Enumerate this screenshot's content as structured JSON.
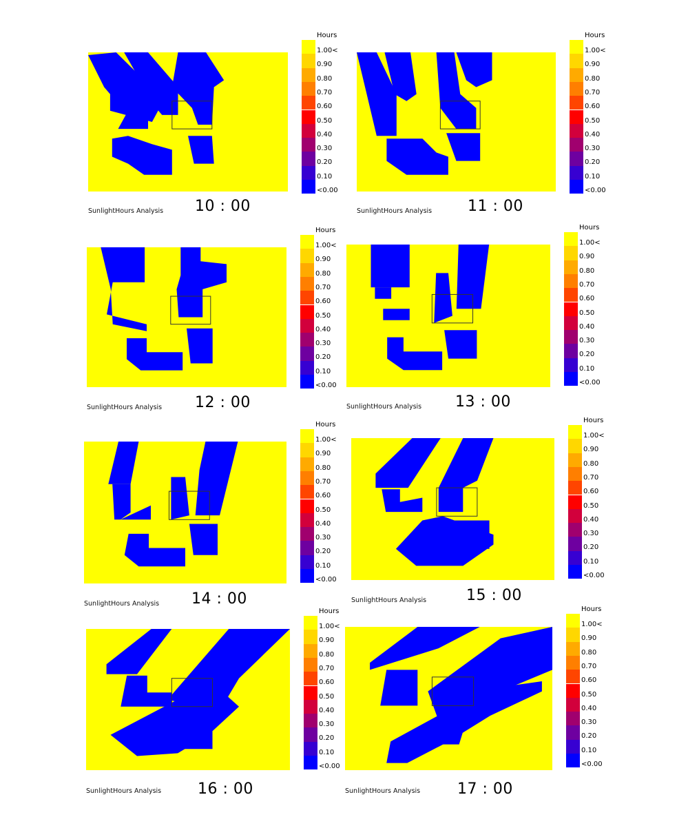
{
  "colors": {
    "background": "#ffff00",
    "shadow": "#0000ff",
    "outline": "#333333"
  },
  "legend": {
    "title": "Hours",
    "labels": [
      "1.00<",
      "0.90",
      "0.80",
      "0.70",
      "0.60",
      "0.50",
      "0.40",
      "0.30",
      "0.20",
      "0.10",
      "<0.00"
    ],
    "colors": [
      "#ffff00",
      "#ffd700",
      "#ffaa00",
      "#ff7f00",
      "#ff4500",
      "#ff0000",
      "#d2003c",
      "#a0006e",
      "#6e00a0",
      "#3700d2",
      "#0000ff"
    ]
  },
  "panels": [
    {
      "caption": "SunlightHours Analysis",
      "time": "10 : 00"
    },
    {
      "caption": "SunlightHours Analysis",
      "time": "11 : 00"
    },
    {
      "caption": "SunlightHours Analysis",
      "time": "12 : 00"
    },
    {
      "caption": "SunlightHours Analysis",
      "time": "13 : 00"
    },
    {
      "caption": "SunlightHours Analysis",
      "time": "14 : 00"
    },
    {
      "caption": "SunlightHours Analysis",
      "time": "15 : 00"
    },
    {
      "caption": "SunlightHours Analysis",
      "time": "16 : 00"
    },
    {
      "caption": "SunlightHours Analysis",
      "time": "17 : 00"
    }
  ]
}
